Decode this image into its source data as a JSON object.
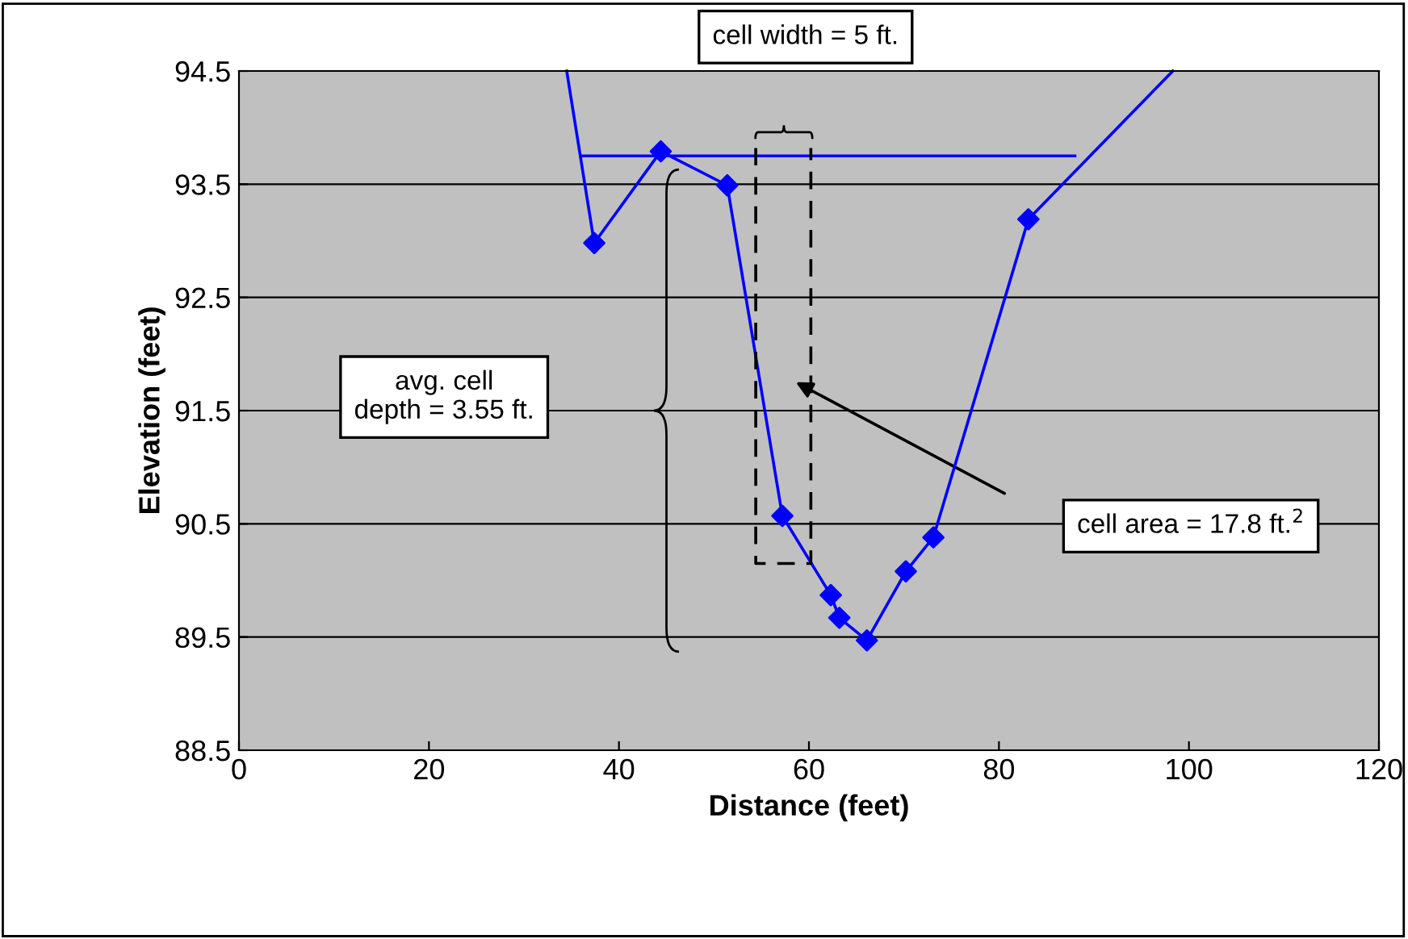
{
  "chart_data": {
    "type": "line",
    "xlabel": "Distance (feet)",
    "ylabel": "Elevation (feet)",
    "xlim": [
      0,
      120
    ],
    "xticks": [
      0,
      20,
      40,
      60,
      80,
      100,
      120
    ],
    "ylim": [
      88.5,
      94.5
    ],
    "yticks": [
      88.5,
      89.5,
      90.5,
      91.5,
      92.5,
      93.5,
      94.5
    ],
    "grid": "y",
    "legend": false,
    "series": [
      {
        "color": "#0000ff",
        "marker": "none",
        "line_style": "solid",
        "x": [
          34.5,
          37.4,
          44.4,
          51.4,
          57.2,
          62.3,
          63.2,
          66.1,
          70.2,
          73.1,
          83.1,
          98.3
        ],
        "values": [
          94.5,
          92.98,
          93.79,
          93.49,
          90.57,
          89.87,
          89.67,
          89.47,
          90.08,
          90.38,
          93.19,
          94.5
        ]
      },
      {
        "type": "scatter",
        "color": "#0000ff",
        "marker": "diamond",
        "x": [
          37.4,
          44.4,
          51.4,
          57.2,
          62.3,
          63.2,
          66.1,
          70.2,
          73.1,
          83.1
        ],
        "values": [
          92.98,
          93.79,
          93.49,
          90.57,
          89.87,
          89.67,
          89.47,
          90.08,
          90.38,
          93.19
        ]
      },
      {
        "color": "#0000ff",
        "marker": "none",
        "line_style": "solid",
        "x": [
          36,
          88
        ],
        "values": [
          93.75,
          93.75
        ]
      },
      {
        "color": "#000000",
        "marker": "none",
        "line_style": "dashed",
        "x": [
          54.4,
          54.4,
          60.2,
          60.2
        ],
        "values": [
          93.82,
          90.15,
          90.15,
          93.82
        ]
      }
    ],
    "annotations": [
      "cell width = 5 ft.",
      "avg. cell\ndepth = 3.55 ft.",
      "cell area = 17.8 ft.$^{2}$"
    ]
  }
}
